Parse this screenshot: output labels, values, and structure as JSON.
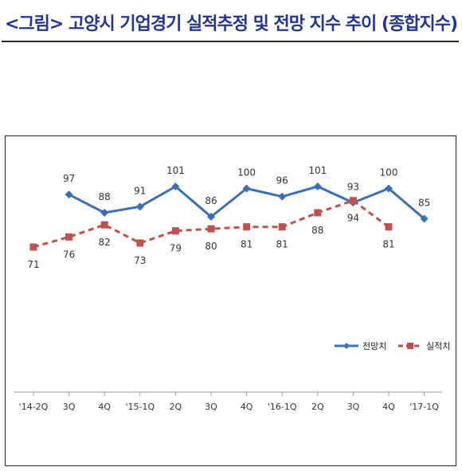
{
  "header": {
    "title": "<그림> 고양시 기업경기 실적추정 및 전망 지수 추이 (종합지수)"
  },
  "chart_data": {
    "type": "line",
    "title": "<그림> 고양시 기업경기 실적추정 및 전망 지수 추이 (종합지수)",
    "categories": [
      "'14-2Q",
      "3Q",
      "4Q",
      "'15-1Q",
      "2Q",
      "3Q",
      "4Q",
      "'16-1Q",
      "2Q",
      "3Q",
      "4Q",
      "'17-1Q"
    ],
    "series": [
      {
        "name": "전망치",
        "values": [
          null,
          97,
          88,
          91,
          101,
          86,
          100,
          96,
          101,
          93,
          100,
          85
        ],
        "color": "#3a6fb3",
        "marker": "diamond",
        "dashed": false
      },
      {
        "name": "실적치",
        "values": [
          71,
          76,
          82,
          73,
          79,
          80,
          81,
          81,
          88,
          94,
          81,
          null
        ],
        "color": "#c0504d",
        "marker": "square",
        "dashed": true
      }
    ],
    "legend_position": "bottom-right",
    "grid": false
  }
}
